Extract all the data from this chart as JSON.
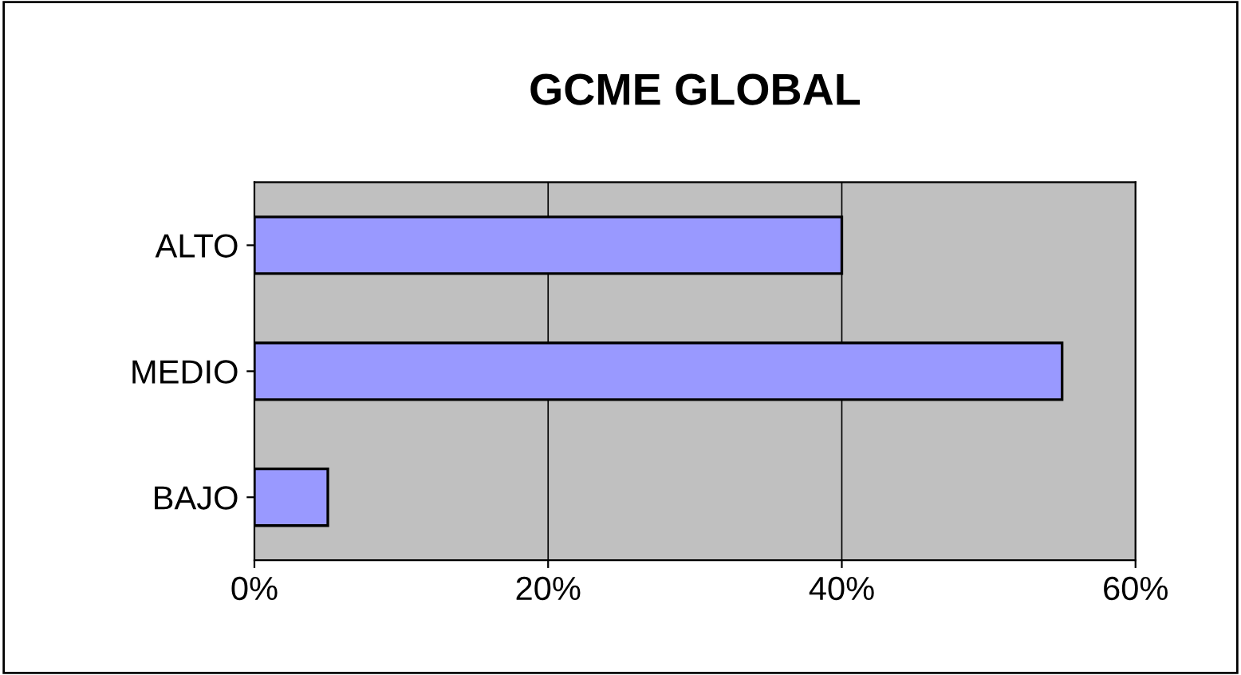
{
  "chart_data": {
    "type": "bar",
    "orientation": "horizontal",
    "title": "GCME GLOBAL",
    "categories": [
      "ALTO",
      "MEDIO",
      "BAJO"
    ],
    "values": [
      40,
      55,
      5
    ],
    "color": "#9999ff",
    "xlim": [
      0,
      60
    ],
    "xticks": [
      {
        "value": 0,
        "label": "0%"
      },
      {
        "value": 20,
        "label": "20%"
      },
      {
        "value": 40,
        "label": "40%"
      },
      {
        "value": 60,
        "label": "60%"
      }
    ],
    "grid": "x",
    "legend": false
  }
}
